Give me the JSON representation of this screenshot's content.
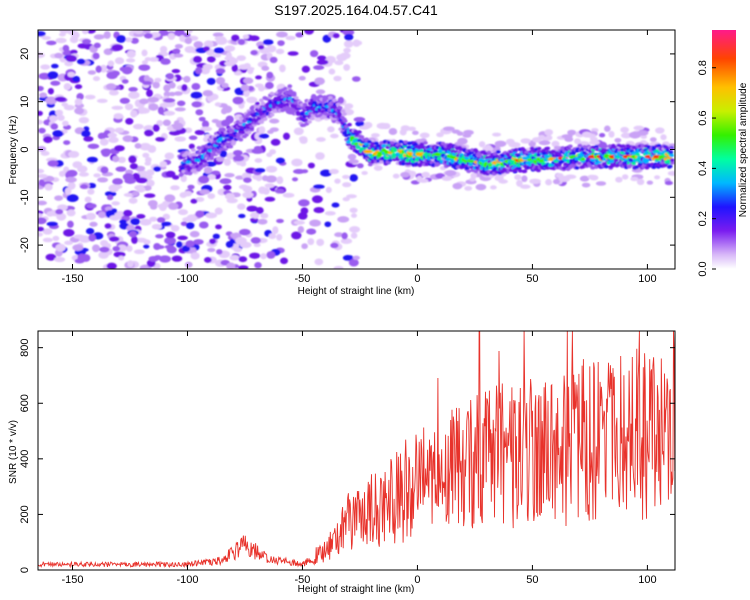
{
  "title": "S197.2025.164.04.57.C41",
  "chart_data": [
    {
      "type": "heatmap",
      "xlabel": "Height of straight line (km)",
      "ylabel": "Frequency (Hz)",
      "xlim": [
        -165,
        112
      ],
      "ylim": [
        -25,
        25
      ],
      "x_ticks": [
        -150,
        -100,
        -50,
        0,
        50,
        100
      ],
      "y_ticks": [
        -20,
        -10,
        0,
        10,
        20
      ],
      "colorbar": {
        "label": "Normalized spectral amplitude",
        "range": [
          0,
          0.95
        ],
        "ticks": [
          0.0,
          0.2,
          0.4,
          0.6,
          0.8
        ]
      },
      "ridge": [
        {
          "x": -100,
          "y": -3
        },
        {
          "x": -95,
          "y": -2
        },
        {
          "x": -90,
          "y": 0
        },
        {
          "x": -85,
          "y": 2
        },
        {
          "x": -80,
          "y": 3
        },
        {
          "x": -75,
          "y": 5
        },
        {
          "x": -70,
          "y": 7
        },
        {
          "x": -65,
          "y": 9
        },
        {
          "x": -60,
          "y": 10
        },
        {
          "x": -55,
          "y": 11
        },
        {
          "x": -50,
          "y": 7
        },
        {
          "x": -45,
          "y": 9
        },
        {
          "x": -40,
          "y": 9
        },
        {
          "x": -35,
          "y": 8
        },
        {
          "x": -30,
          "y": 3
        },
        {
          "x": -25,
          "y": 1
        },
        {
          "x": -20,
          "y": -1
        },
        {
          "x": -10,
          "y": -0.5
        },
        {
          "x": 0,
          "y": -1
        },
        {
          "x": 10,
          "y": -1
        },
        {
          "x": 20,
          "y": -2
        },
        {
          "x": 30,
          "y": -3
        },
        {
          "x": 40,
          "y": -2.5
        },
        {
          "x": 50,
          "y": -2
        },
        {
          "x": 60,
          "y": -2
        },
        {
          "x": 70,
          "y": -1.5
        },
        {
          "x": 80,
          "y": -1.5
        },
        {
          "x": 90,
          "y": -1.5
        },
        {
          "x": 100,
          "y": -1.5
        },
        {
          "x": 110,
          "y": -1.5
        }
      ]
    },
    {
      "type": "line",
      "xlabel": "Height of straight line (km)",
      "ylabel": "SNR (10 * v/v)",
      "xlim": [
        -165,
        112
      ],
      "ylim": [
        0,
        860
      ],
      "x_ticks": [
        -150,
        -100,
        -50,
        0,
        50,
        100
      ],
      "y_ticks": [
        0,
        200,
        400,
        600,
        800
      ],
      "color": "#e8322b",
      "envelope": [
        {
          "x": -165,
          "y": 20
        },
        {
          "x": -100,
          "y": 20
        },
        {
          "x": -85,
          "y": 35
        },
        {
          "x": -75,
          "y": 90
        },
        {
          "x": -65,
          "y": 40
        },
        {
          "x": -50,
          "y": 20
        },
        {
          "x": -40,
          "y": 70
        },
        {
          "x": -30,
          "y": 170
        },
        {
          "x": -20,
          "y": 210
        },
        {
          "x": -10,
          "y": 260
        },
        {
          "x": 0,
          "y": 300
        },
        {
          "x": 10,
          "y": 340
        },
        {
          "x": 20,
          "y": 380
        },
        {
          "x": 30,
          "y": 400
        },
        {
          "x": 40,
          "y": 410
        },
        {
          "x": 50,
          "y": 420
        },
        {
          "x": 60,
          "y": 440
        },
        {
          "x": 70,
          "y": 460
        },
        {
          "x": 80,
          "y": 470
        },
        {
          "x": 90,
          "y": 480
        },
        {
          "x": 100,
          "y": 490
        },
        {
          "x": 112,
          "y": 500
        }
      ],
      "peak": {
        "x": 27,
        "y": 860
      }
    }
  ]
}
